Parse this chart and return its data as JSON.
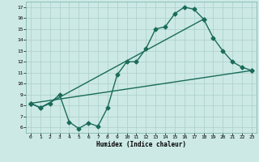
{
  "xlabel": "Humidex (Indice chaleur)",
  "ylabel": "",
  "xlim": [
    -0.5,
    23.5
  ],
  "ylim": [
    5.5,
    17.5
  ],
  "xticks": [
    0,
    1,
    2,
    3,
    4,
    5,
    6,
    7,
    8,
    9,
    10,
    11,
    12,
    13,
    14,
    15,
    16,
    17,
    18,
    19,
    20,
    21,
    22,
    23
  ],
  "yticks": [
    6,
    7,
    8,
    9,
    10,
    11,
    12,
    13,
    14,
    15,
    16,
    17
  ],
  "bg_color": "#cce9e5",
  "grid_color": "#aacfcb",
  "line_color": "#1a6b5a",
  "line1_x": [
    0,
    1,
    2,
    3,
    4,
    5,
    6,
    7,
    8,
    9,
    10,
    11,
    12,
    13,
    14,
    15,
    16,
    17,
    18
  ],
  "line1_y": [
    8.2,
    7.8,
    8.2,
    9.0,
    6.5,
    5.9,
    6.4,
    6.1,
    7.8,
    10.8,
    12.0,
    12.0,
    13.2,
    15.0,
    15.2,
    16.4,
    17.0,
    16.8,
    15.9
  ],
  "line2_x": [
    0,
    1,
    18,
    19,
    20,
    21,
    22,
    23
  ],
  "line2_y": [
    8.2,
    7.8,
    15.9,
    14.2,
    13.0,
    12.0,
    11.5,
    11.2
  ],
  "line3_x": [
    0,
    23
  ],
  "line3_y": [
    8.2,
    11.2
  ],
  "marker": "D",
  "markersize": 2.5,
  "linewidth": 1.0
}
